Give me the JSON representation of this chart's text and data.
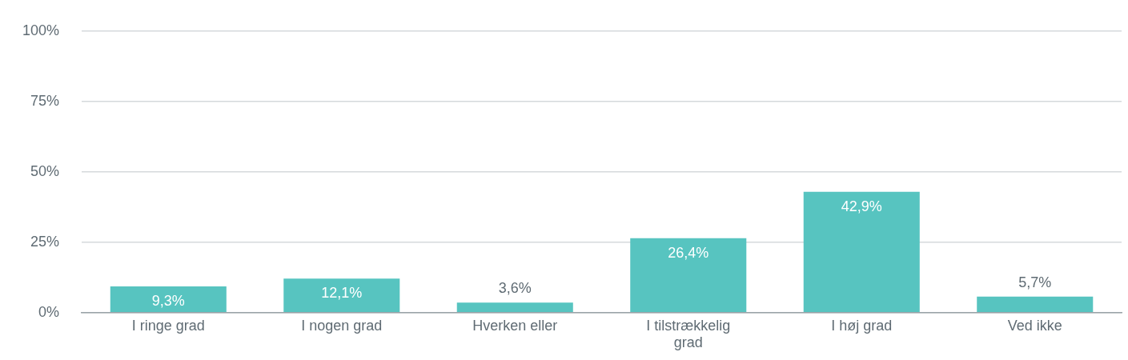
{
  "chart_data": {
    "type": "bar",
    "categories": [
      "I ringe grad",
      "I nogen grad",
      "Hverken eller",
      "I tilstrækkelig grad",
      "I høj grad",
      "Ved ikke"
    ],
    "values": [
      9.3,
      12.1,
      3.6,
      26.4,
      42.9,
      5.7
    ],
    "value_labels": [
      "9,3%",
      "12,1%",
      "3,6%",
      "26,4%",
      "42,9%",
      "5,7%"
    ],
    "color": "#57c4c0",
    "ylim": [
      0,
      100
    ],
    "yticks": [
      {
        "value": 0,
        "label": "0%"
      },
      {
        "value": 25,
        "label": "25%"
      },
      {
        "value": 50,
        "label": "50%"
      },
      {
        "value": 75,
        "label": "75%"
      },
      {
        "value": 100,
        "label": "100%"
      }
    ],
    "grid": "y"
  }
}
